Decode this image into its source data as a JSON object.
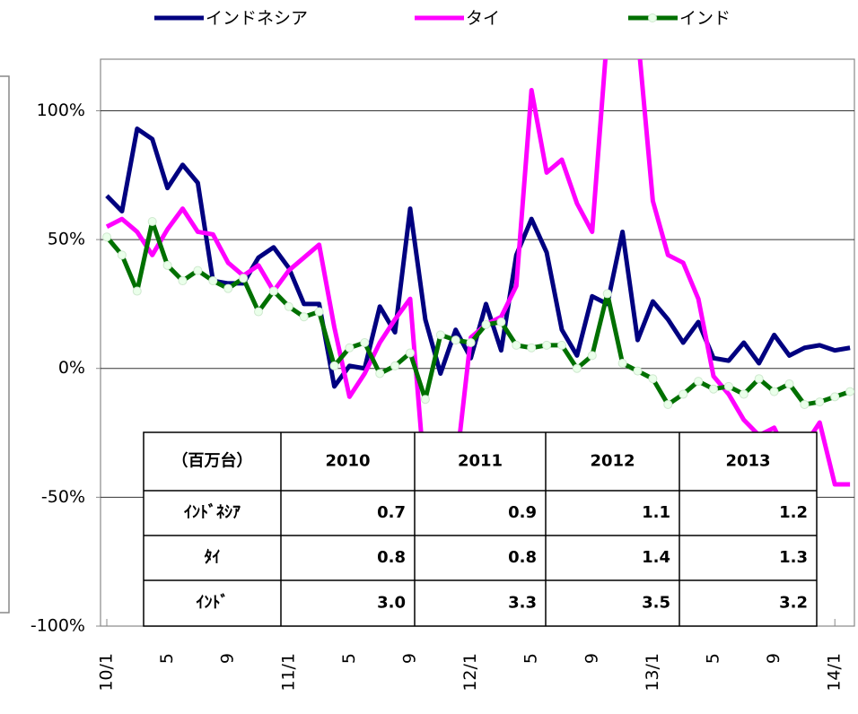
{
  "chart_data": {
    "type": "line",
    "categories": [
      "10/1",
      null,
      null,
      null,
      "5",
      null,
      null,
      null,
      "9",
      null,
      null,
      null,
      "11/1",
      null,
      null,
      null,
      "5",
      null,
      null,
      null,
      "9",
      null,
      null,
      null,
      "12/1",
      null,
      null,
      null,
      "5",
      null,
      null,
      null,
      "9",
      null,
      null,
      null,
      "13/1",
      null,
      null,
      null,
      "5",
      null,
      null,
      null,
      "9",
      null,
      null,
      null,
      "14/1",
      null
    ],
    "series": [
      {
        "name": "インドネシア",
        "color": "#000080",
        "values": [
          67,
          61,
          93,
          89,
          70,
          79,
          72,
          34,
          33,
          33,
          43,
          47,
          39,
          25,
          25,
          -7,
          1,
          0,
          24,
          14,
          62,
          19,
          -2,
          15,
          4,
          25,
          7,
          44,
          58,
          45,
          15,
          5,
          28,
          25,
          53,
          11,
          26,
          19,
          10,
          18,
          4,
          3,
          10,
          2,
          13,
          5,
          8,
          9,
          7,
          8
        ]
      },
      {
        "name": "タイ",
        "color": "#ff00ff",
        "values": [
          55,
          58,
          53,
          44,
          54,
          62,
          53,
          52,
          41,
          36,
          40,
          30,
          38,
          43,
          48,
          16,
          -11,
          -2,
          10,
          19,
          27,
          -45,
          -60,
          -40,
          12,
          17,
          20,
          32,
          108,
          76,
          81,
          64,
          53,
          130,
          140,
          130,
          65,
          44,
          41,
          27,
          -3,
          -10,
          -20,
          -26,
          -23,
          -35,
          -30,
          -21,
          -45,
          -45
        ]
      },
      {
        "name": "インド",
        "color": "#007000",
        "marker": true,
        "values": [
          51,
          44,
          30,
          57,
          40,
          34,
          38,
          34,
          31,
          35,
          22,
          30,
          24,
          20,
          22,
          1,
          8,
          10,
          -2,
          1,
          6,
          -12,
          13,
          11,
          10,
          17,
          18,
          9,
          8,
          9,
          9,
          0,
          5,
          29,
          2,
          -1,
          -4,
          -14,
          -10,
          -5,
          -8,
          -7,
          -10,
          -4,
          -9,
          -6,
          -14,
          -13,
          -11,
          -9
        ]
      }
    ],
    "ylim": [
      -100,
      120
    ],
    "yticks": [
      {
        "value": -100,
        "label": "-100%"
      },
      {
        "value": -50,
        "label": "-50%"
      },
      {
        "value": 0,
        "label": "0%"
      },
      {
        "value": 50,
        "label": "50%"
      },
      {
        "value": 100,
        "label": "100%"
      }
    ],
    "grid": true,
    "table": {
      "header": [
        "（百万台）",
        "2010",
        "2011",
        "2012",
        "2013"
      ],
      "rows": [
        [
          "ｲﾝﾄﾞﾈｼｱ",
          "0.7",
          "0.9",
          "1.1",
          "1.2"
        ],
        [
          "ﾀｲ",
          "0.8",
          "0.8",
          "1.4",
          "1.3"
        ],
        [
          "ｲﾝﾄﾞ",
          "3.0",
          "3.3",
          "3.5",
          "3.2"
        ]
      ]
    }
  }
}
